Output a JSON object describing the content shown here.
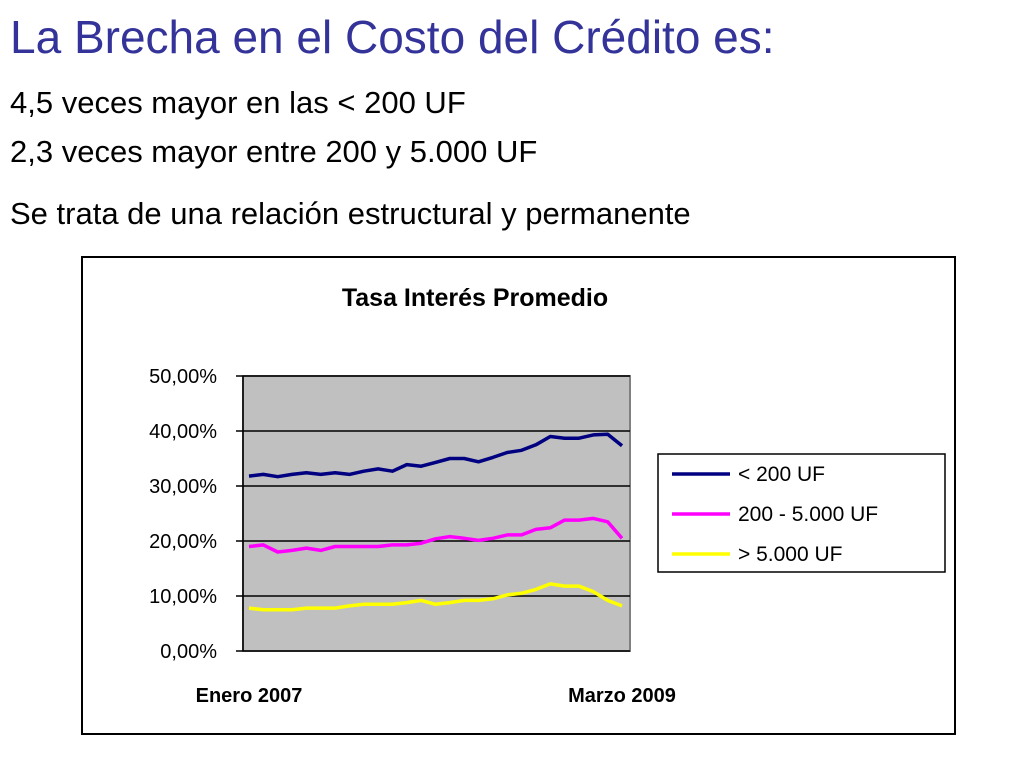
{
  "slide": {
    "title": "La Brecha en el Costo del Crédito es:",
    "line1": "4,5 veces mayor en las < 200 UF",
    "line2": "2,3 veces mayor entre 200 y 5.000 UF",
    "line3": "Se trata de una relación estructural y permanente"
  },
  "chart_data": {
    "type": "line",
    "title": "Tasa Interés Promedio",
    "xlabel": "",
    "ylabel": "",
    "ylim": [
      0,
      50
    ],
    "ytick_values": [
      0,
      10,
      20,
      30,
      40,
      50
    ],
    "ytick_labels": [
      "0,00%",
      "10,00%",
      "20,00%",
      "30,00%",
      "40,00%",
      "50,00%"
    ],
    "xtick_labels": [
      {
        "label": "Enero 2007",
        "index": 0
      },
      {
        "label": "Marzo 2009",
        "index": 26
      }
    ],
    "plot_background": "#c0c0c0",
    "grid": true,
    "legend_position": "right",
    "series": [
      {
        "name": "< 200 UF",
        "color": "#000080",
        "values": [
          31.8,
          32.1,
          31.7,
          32.1,
          32.4,
          32.1,
          32.4,
          32.1,
          32.7,
          33.1,
          32.7,
          33.9,
          33.6,
          34.3,
          35.0,
          35.0,
          34.4,
          35.2,
          36.1,
          36.5,
          37.5,
          39.0,
          38.7,
          38.7,
          39.3,
          39.4,
          37.3
        ]
      },
      {
        "name": "200 - 5.000 UF",
        "color": "#ff00ff",
        "values": [
          19.0,
          19.3,
          18.0,
          18.3,
          18.7,
          18.3,
          19.0,
          19.0,
          19.0,
          19.0,
          19.3,
          19.3,
          19.6,
          20.4,
          20.8,
          20.5,
          20.1,
          20.5,
          21.1,
          21.1,
          22.1,
          22.4,
          23.8,
          23.8,
          24.1,
          23.5,
          20.5
        ]
      },
      {
        "name": "> 5.000 UF",
        "color": "#ffff00",
        "values": [
          7.8,
          7.5,
          7.5,
          7.5,
          7.8,
          7.8,
          7.8,
          8.2,
          8.5,
          8.5,
          8.5,
          8.8,
          9.2,
          8.5,
          8.8,
          9.2,
          9.2,
          9.5,
          10.2,
          10.5,
          11.2,
          12.2,
          11.8,
          11.8,
          10.8,
          9.2,
          8.2
        ]
      }
    ]
  }
}
